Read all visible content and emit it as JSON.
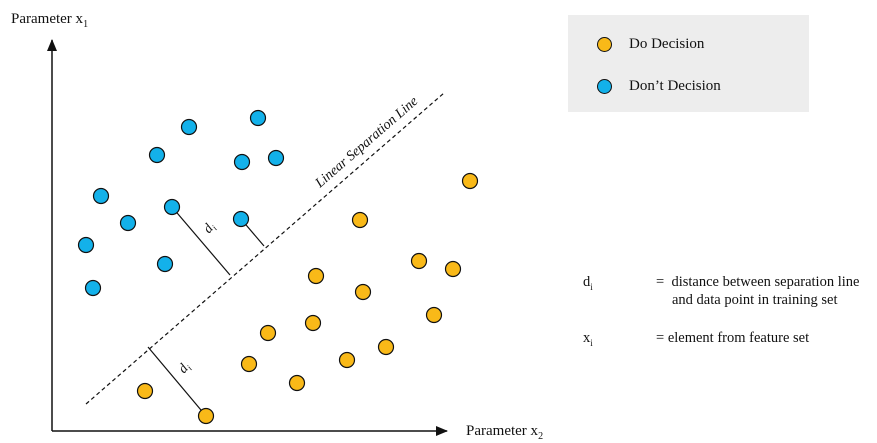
{
  "axes": {
    "y_label": "Parameter x",
    "y_label_sub": "1",
    "x_label": "Parameter x",
    "x_label_sub": "2"
  },
  "separation_line": {
    "label": "Linear Separation Line"
  },
  "distance_labels": {
    "main": "d",
    "sub": "i"
  },
  "legend": {
    "items": [
      {
        "label": "Do Decision",
        "color": "#f9b918"
      },
      {
        "label": "Don’t Decision",
        "color": "#13b1ea"
      }
    ]
  },
  "notes": {
    "di": {
      "symbol": "d",
      "sub": "i",
      "eq": "=",
      "line1": "distance between separation line",
      "line2": "and data point in training set"
    },
    "xi": {
      "symbol": "x",
      "sub": "i",
      "eq": "=",
      "line1": "element from feature set"
    }
  },
  "colors": {
    "do": "#f9b918",
    "dont": "#13b1ea",
    "outline": "#111111"
  }
}
